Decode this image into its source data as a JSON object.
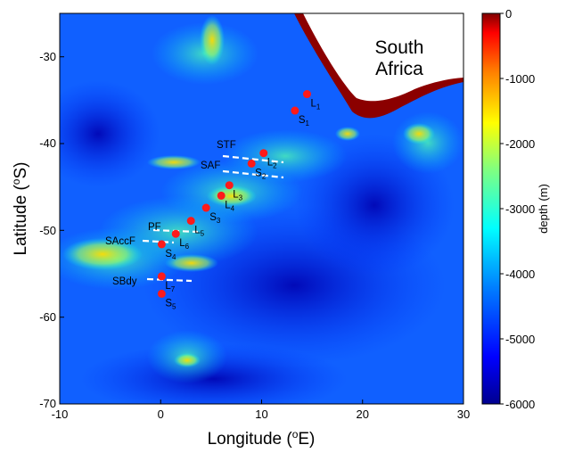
{
  "map": {
    "country_label_line1": "South",
    "country_label_line2": "Africa",
    "x_axis": {
      "label": "Longitude (",
      "label_sup": "o",
      "label_end": "E)",
      "ticks": [
        "-10",
        "0",
        "10",
        "20",
        "30"
      ],
      "range": [
        -10,
        30
      ]
    },
    "y_axis": {
      "label": "Latitude (",
      "label_sup": "o",
      "label_end": "S)",
      "ticks": [
        "-30",
        "-40",
        "-50",
        "-60",
        "-70"
      ],
      "range": [
        -70,
        -25
      ]
    },
    "colorbar": {
      "label": "depth (m)",
      "ticks": [
        "0",
        "-1000",
        "-2000",
        "-3000",
        "-4000",
        "-5000",
        "-6000"
      ],
      "range": [
        -6000,
        0
      ]
    },
    "fronts": [
      {
        "name": "STF"
      },
      {
        "name": "SAF"
      },
      {
        "name": "PF"
      },
      {
        "name": "SAccF"
      },
      {
        "name": "SBdy"
      }
    ],
    "stations": [
      {
        "name": "L",
        "sub": "1",
        "lon": 14.5,
        "lat": -34.3
      },
      {
        "name": "S",
        "sub": "1",
        "lon": 13.3,
        "lat": -36.2
      },
      {
        "name": "L",
        "sub": "2",
        "lon": 10.2,
        "lat": -41.1
      },
      {
        "name": "S",
        "sub": "2",
        "lon": 9.0,
        "lat": -42.3
      },
      {
        "name": "L",
        "sub": "3",
        "lon": 6.8,
        "lat": -44.8
      },
      {
        "name": "L",
        "sub": "4",
        "lon": 6.0,
        "lat": -46.0
      },
      {
        "name": "S",
        "sub": "3",
        "lon": 4.5,
        "lat": -47.4
      },
      {
        "name": "L",
        "sub": "5",
        "lon": 3.0,
        "lat": -48.9
      },
      {
        "name": "L",
        "sub": "6",
        "lon": 1.5,
        "lat": -50.4
      },
      {
        "name": "S",
        "sub": "4",
        "lon": 0.1,
        "lat": -51.6
      },
      {
        "name": "L",
        "sub": "7",
        "lon": 0.1,
        "lat": -55.3
      },
      {
        "name": "S",
        "sub": "5",
        "lon": 0.1,
        "lat": -57.3
      }
    ],
    "colors": {
      "station": "#ff1a1a",
      "front_line": "#ffffff",
      "land": "#ffffff",
      "shelf": "#8b0000"
    }
  }
}
